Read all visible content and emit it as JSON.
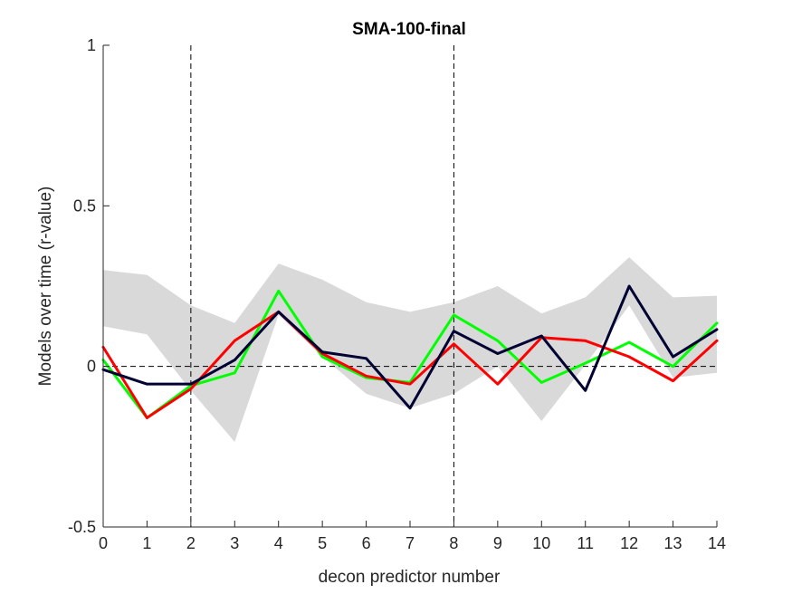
{
  "chart_data": {
    "type": "line",
    "title": "SMA-100-final",
    "xlabel": "decon predictor number",
    "ylabel": "Models over time (r-value)",
    "xlim": [
      0,
      14
    ],
    "ylim": [
      -0.5,
      1
    ],
    "x": [
      0,
      1,
      2,
      3,
      4,
      5,
      6,
      7,
      8,
      9,
      10,
      11,
      12,
      13,
      14
    ],
    "xticks": [
      "0",
      "1",
      "2",
      "3",
      "4",
      "5",
      "6",
      "7",
      "8",
      "9",
      "10",
      "11",
      "12",
      "13",
      "14"
    ],
    "yticks": [
      "-0.5",
      "0",
      "0.5",
      "1"
    ],
    "ytick_values": [
      -0.5,
      0,
      0.5,
      1
    ],
    "grid": false,
    "vlines": [
      2,
      8
    ],
    "hline": 0,
    "band": {
      "color": "#d9d9d9",
      "upper": [
        0.3,
        0.285,
        0.19,
        0.135,
        0.32,
        0.27,
        0.2,
        0.17,
        0.2,
        0.25,
        0.165,
        0.215,
        0.34,
        0.215,
        0.22
      ],
      "lower": [
        0.125,
        0.1,
        -0.075,
        -0.235,
        0.16,
        0.03,
        -0.085,
        -0.13,
        -0.085,
        0.0,
        -0.17,
        0.005,
        0.19,
        -0.035,
        -0.02
      ]
    },
    "series": [
      {
        "color": "#00ff00",
        "values": [
          0.02,
          -0.16,
          -0.06,
          -0.02,
          0.235,
          0.03,
          -0.035,
          -0.05,
          0.16,
          0.08,
          -0.05,
          0.01,
          0.075,
          0.0,
          0.135
        ]
      },
      {
        "color": "#ff0000",
        "values": [
          0.06,
          -0.16,
          -0.07,
          0.08,
          0.17,
          0.04,
          -0.03,
          -0.055,
          0.07,
          -0.055,
          0.09,
          0.08,
          0.03,
          -0.045,
          0.08
        ]
      },
      {
        "color": "#000033",
        "values": [
          -0.01,
          -0.055,
          -0.055,
          0.02,
          0.17,
          0.045,
          0.025,
          -0.13,
          0.11,
          0.04,
          0.095,
          -0.075,
          0.25,
          0.03,
          0.115
        ]
      }
    ]
  }
}
